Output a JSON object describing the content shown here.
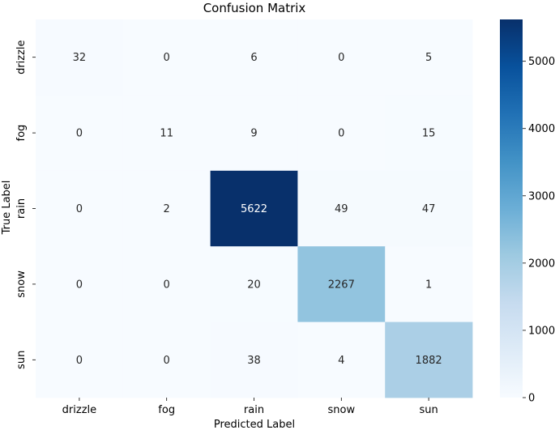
{
  "chart_data": {
    "type": "heatmap",
    "title": "Confusion Matrix",
    "xlabel": "Predicted Label",
    "ylabel": "True Label",
    "x_categories": [
      "drizzle",
      "fog",
      "rain",
      "snow",
      "sun"
    ],
    "y_categories": [
      "drizzle",
      "fog",
      "rain",
      "snow",
      "sun"
    ],
    "values": [
      [
        32,
        0,
        6,
        0,
        5
      ],
      [
        0,
        11,
        9,
        0,
        15
      ],
      [
        0,
        2,
        5622,
        49,
        47
      ],
      [
        0,
        0,
        20,
        2267,
        1
      ],
      [
        0,
        0,
        38,
        4,
        1882
      ]
    ],
    "colorbar": {
      "min": 0,
      "max": 5622,
      "ticks": [
        0,
        1000,
        2000,
        3000,
        4000,
        5000
      ],
      "colormap": "Blues"
    },
    "colors": {
      "low": "#f7fbff",
      "high": "#08306b",
      "annotation_dark": "#262626",
      "annotation_light": "#ffffff"
    }
  }
}
